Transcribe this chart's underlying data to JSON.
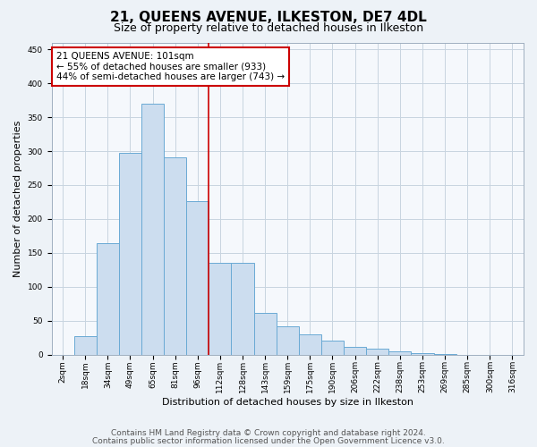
{
  "title": "21, QUEENS AVENUE, ILKESTON, DE7 4DL",
  "subtitle": "Size of property relative to detached houses in Ilkeston",
  "xlabel": "Distribution of detached houses by size in Ilkeston",
  "ylabel": "Number of detached properties",
  "categories": [
    "2sqm",
    "18sqm",
    "34sqm",
    "49sqm",
    "65sqm",
    "81sqm",
    "96sqm",
    "112sqm",
    "128sqm",
    "143sqm",
    "159sqm",
    "175sqm",
    "190sqm",
    "206sqm",
    "222sqm",
    "238sqm",
    "253sqm",
    "269sqm",
    "285sqm",
    "300sqm",
    "316sqm"
  ],
  "values": [
    0,
    28,
    165,
    297,
    370,
    291,
    226,
    135,
    135,
    62,
    42,
    30,
    21,
    11,
    9,
    5,
    3,
    1,
    0,
    0,
    0
  ],
  "bar_color": "#ccddef",
  "bar_edge_color": "#6aaad4",
  "vline_color": "#cc0000",
  "annotation_text": "21 QUEENS AVENUE: 101sqm\n← 55% of detached houses are smaller (933)\n44% of semi-detached houses are larger (743) →",
  "annotation_box_color": "#ffffff",
  "annotation_box_edge": "#cc0000",
  "ylim": [
    0,
    460
  ],
  "yticks": [
    0,
    50,
    100,
    150,
    200,
    250,
    300,
    350,
    400,
    450
  ],
  "footer1": "Contains HM Land Registry data © Crown copyright and database right 2024.",
  "footer2": "Contains public sector information licensed under the Open Government Licence v3.0.",
  "bg_color": "#edf2f7",
  "plot_bg_color": "#f5f8fc",
  "grid_color": "#c8d4e0",
  "title_fontsize": 11,
  "subtitle_fontsize": 9,
  "axis_label_fontsize": 8,
  "tick_fontsize": 6.5,
  "annotation_fontsize": 7.5,
  "footer_fontsize": 6.5
}
